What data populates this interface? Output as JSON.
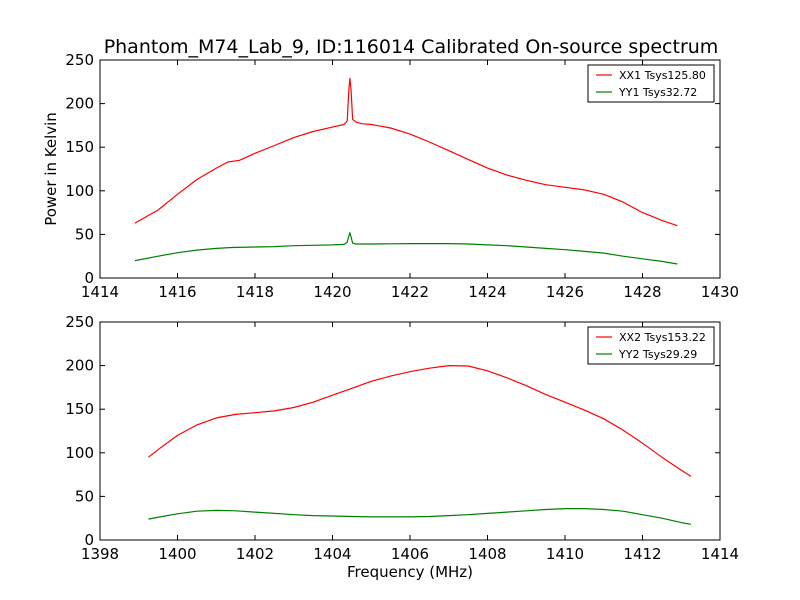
{
  "figure": {
    "title": "Phantom_M74_Lab_9, ID:116014 Calibrated On-source spectrum"
  },
  "chart_data": [
    {
      "type": "line",
      "title": "Phantom_M74_Lab_9, ID:116014 Calibrated On-source spectrum",
      "xlabel": "",
      "ylabel": "Power in Kelvin",
      "xlim": [
        1414,
        1430
      ],
      "ylim": [
        0,
        250
      ],
      "xticks": [
        1414,
        1416,
        1418,
        1420,
        1422,
        1424,
        1426,
        1428,
        1430
      ],
      "yticks": [
        0,
        50,
        100,
        150,
        200,
        250
      ],
      "grid": false,
      "legend": "top-right",
      "series": [
        {
          "name": "XX1 Tsys125.80",
          "color": "#ff0000",
          "x": [
            1414.9,
            1415.5,
            1416.0,
            1416.5,
            1417.0,
            1417.3,
            1417.6,
            1418.0,
            1418.5,
            1419.0,
            1419.5,
            1420.0,
            1420.3,
            1420.38,
            1420.42,
            1420.45,
            1420.48,
            1420.52,
            1420.6,
            1420.75,
            1421.0,
            1421.5,
            1422.0,
            1422.5,
            1423.0,
            1423.5,
            1424.0,
            1424.5,
            1425.0,
            1425.5,
            1426.0,
            1426.5,
            1427.0,
            1427.5,
            1428.0,
            1428.5,
            1428.9
          ],
          "y": [
            63,
            78,
            96,
            113,
            126,
            133,
            135,
            143,
            152,
            161,
            168,
            173,
            176,
            180,
            215,
            229,
            215,
            182,
            179,
            177,
            176,
            172,
            165,
            156,
            146,
            136,
            126,
            118,
            112,
            107,
            104,
            101,
            96,
            87,
            75,
            66,
            60
          ]
        },
        {
          "name": "YY1 Tsys32.72",
          "color": "#008000",
          "x": [
            1414.9,
            1415.5,
            1416.0,
            1416.5,
            1417.0,
            1417.4,
            1418.0,
            1418.5,
            1419.0,
            1419.5,
            1420.0,
            1420.3,
            1420.38,
            1420.42,
            1420.45,
            1420.48,
            1420.52,
            1420.6,
            1421.0,
            1421.5,
            1422.0,
            1422.5,
            1423.0,
            1423.5,
            1424.0,
            1424.5,
            1425.0,
            1425.5,
            1426.0,
            1426.5,
            1427.0,
            1427.5,
            1428.0,
            1428.5,
            1428.9
          ],
          "y": [
            20,
            25,
            29,
            32,
            34,
            35,
            35.5,
            36,
            37,
            37.5,
            38,
            38.5,
            41,
            48,
            52,
            47,
            40,
            39,
            39,
            39.2,
            39.5,
            39.5,
            39.5,
            39,
            38,
            37,
            35.5,
            34,
            32.5,
            30.5,
            28.5,
            25,
            22,
            19,
            16
          ]
        }
      ]
    },
    {
      "type": "line",
      "title": "",
      "xlabel": "Frequency (MHz)",
      "ylabel": "",
      "xlim": [
        1398,
        1414
      ],
      "ylim": [
        0,
        250
      ],
      "xticks": [
        1398,
        1400,
        1402,
        1404,
        1406,
        1408,
        1410,
        1412,
        1414
      ],
      "yticks": [
        0,
        50,
        100,
        150,
        200,
        250
      ],
      "grid": false,
      "legend": "top-right",
      "series": [
        {
          "name": "XX2 Tsys153.22",
          "color": "#ff0000",
          "x": [
            1399.25,
            1399.6,
            1400.0,
            1400.5,
            1401.0,
            1401.5,
            1402.0,
            1402.5,
            1403.0,
            1403.5,
            1404.0,
            1404.5,
            1405.0,
            1405.5,
            1406.0,
            1406.5,
            1407.0,
            1407.5,
            1408.0,
            1408.5,
            1409.0,
            1409.5,
            1410.0,
            1410.5,
            1411.0,
            1411.5,
            1412.0,
            1412.5,
            1413.0,
            1413.25
          ],
          "y": [
            95,
            107,
            120,
            132,
            140,
            144,
            146,
            148,
            152,
            158,
            166,
            174,
            182,
            188,
            193,
            197,
            200,
            199.5,
            194,
            186,
            177,
            167,
            158,
            149,
            139,
            126,
            111,
            95,
            80,
            73
          ]
        },
        {
          "name": "YY2 Tsys29.29",
          "color": "#008000",
          "x": [
            1399.25,
            1399.6,
            1400.0,
            1400.5,
            1401.0,
            1401.5,
            1402.0,
            1402.5,
            1403.0,
            1403.5,
            1404.0,
            1404.5,
            1405.0,
            1405.5,
            1406.0,
            1406.5,
            1407.0,
            1407.5,
            1408.0,
            1408.5,
            1409.0,
            1409.5,
            1410.0,
            1410.5,
            1411.0,
            1411.5,
            1412.0,
            1412.5,
            1413.0,
            1413.25
          ],
          "y": [
            24,
            27,
            30,
            33,
            34,
            33.5,
            32,
            30.5,
            29,
            28,
            27.5,
            27,
            26.5,
            26.5,
            26.5,
            27,
            28,
            29,
            30.5,
            32,
            33.5,
            35,
            36,
            36,
            35,
            33,
            29,
            25,
            20,
            18
          ]
        }
      ]
    }
  ]
}
